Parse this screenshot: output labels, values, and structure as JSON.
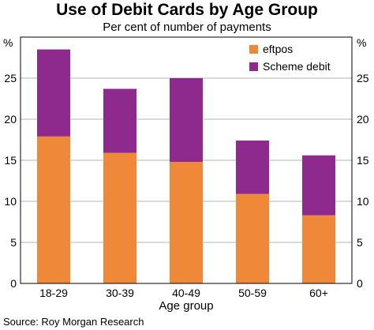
{
  "chart_data": {
    "type": "bar",
    "stacked": true,
    "title": "Use of Debit Cards by Age Group",
    "subtitle": "Per cent of number of payments",
    "xlabel": "Age group",
    "ylabel": "%",
    "categories": [
      "18-29",
      "30-39",
      "40-49",
      "50-59",
      "60+"
    ],
    "series": [
      {
        "name": "eftpos",
        "values": [
          17.9,
          15.9,
          14.8,
          10.9,
          8.3
        ],
        "color": "#f0883a"
      },
      {
        "name": "Scheme debit",
        "values": [
          10.6,
          7.8,
          10.2,
          6.5,
          7.3
        ],
        "color": "#8e2a8e"
      }
    ],
    "ylim": [
      0,
      30
    ],
    "yticks": [
      "0",
      "5",
      "10",
      "15",
      "20",
      "25"
    ],
    "grid": true,
    "legend_position": "top-right",
    "source": "Source: Roy Morgan Research"
  }
}
